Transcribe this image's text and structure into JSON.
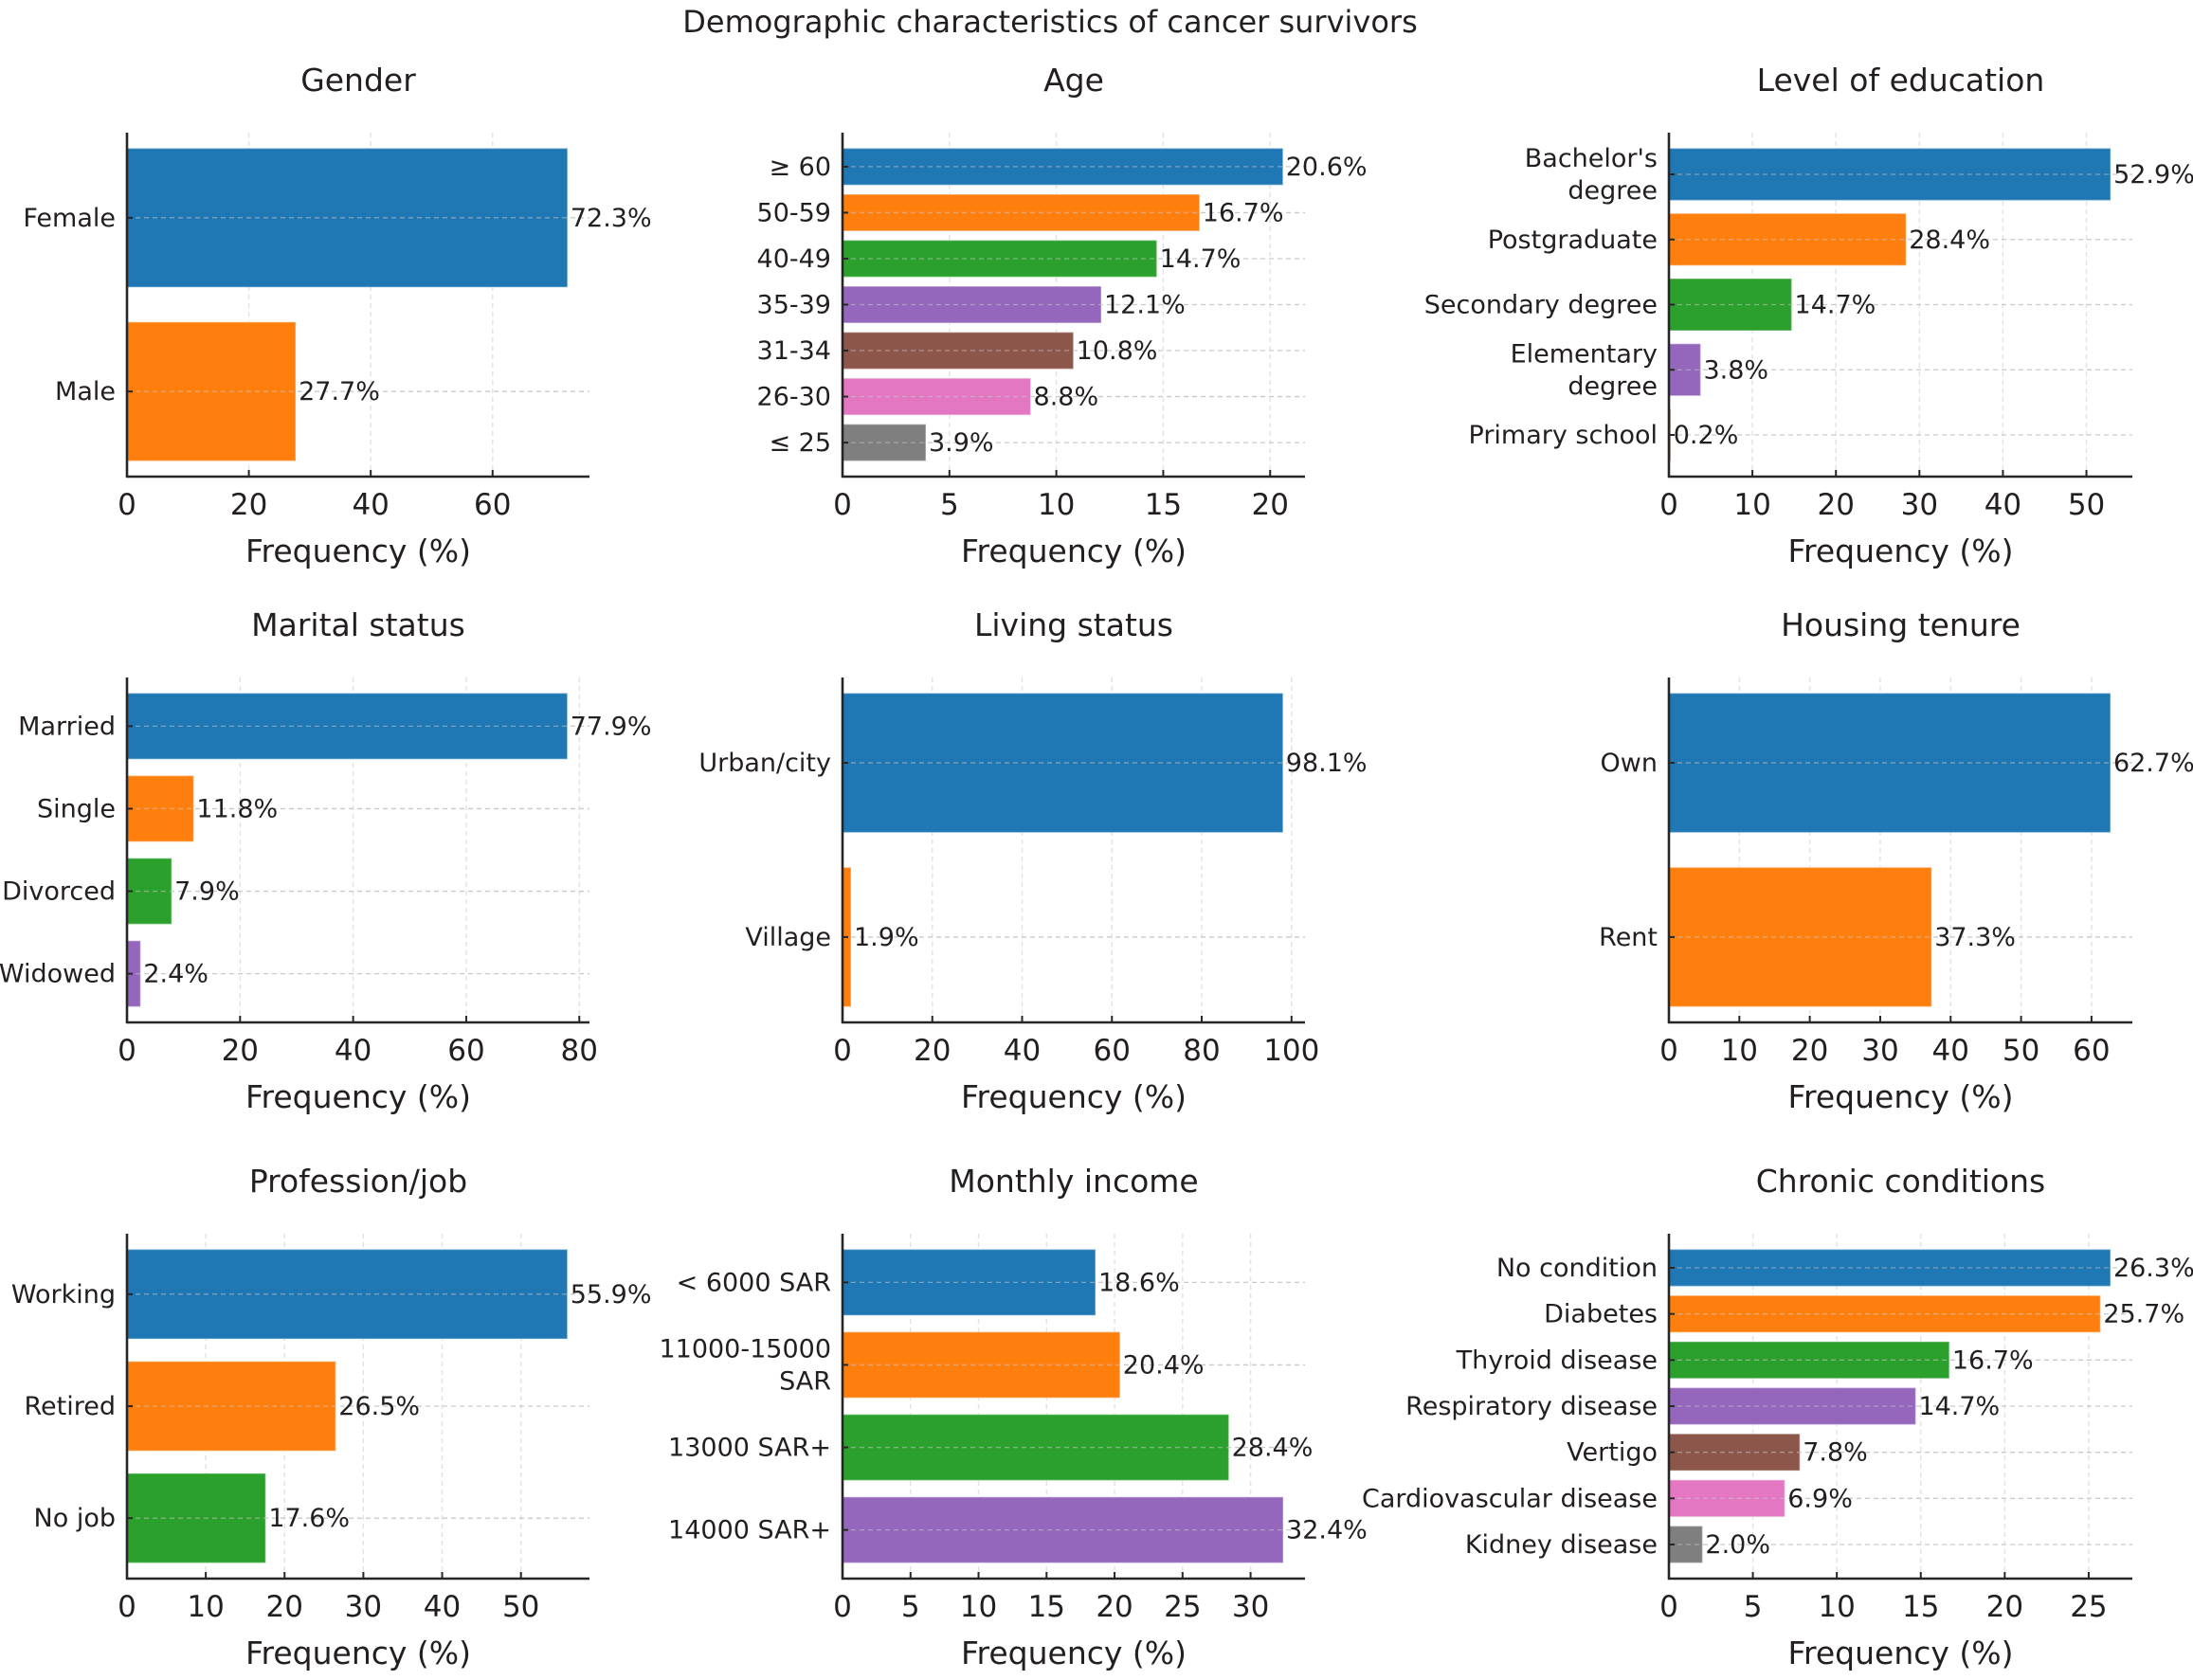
{
  "chart_data": {
    "type": "bar",
    "orientation": "horizontal",
    "title": "Demographic characteristics of cancer survivors",
    "grid": true,
    "value_label_format": "{v}%",
    "palette": [
      "#1f77b4",
      "#ff7f0e",
      "#2ca02c",
      "#9467bd",
      "#8c564b",
      "#e377c2",
      "#7f7f7f"
    ],
    "panels": [
      {
        "id": "gender",
        "title": "Gender",
        "xlabel": "Frequency (%)",
        "categories": [
          "Female",
          "Male"
        ],
        "values": [
          72.3,
          27.7
        ],
        "value_labels": [
          "72.3%",
          "27.7%"
        ],
        "xlim": [
          0,
          75.9
        ],
        "xticks": [
          0,
          20,
          40,
          60
        ],
        "xtick_labels": [
          "0",
          "20",
          "40",
          "60"
        ]
      },
      {
        "id": "age",
        "title": "Age",
        "xlabel": "Frequency (%)",
        "categories": [
          "≥ 60",
          "50-59",
          "40-49",
          "35-39",
          "31-34",
          "26-30",
          "≤ 25"
        ],
        "values": [
          20.6,
          16.7,
          14.7,
          12.1,
          10.8,
          8.8,
          3.9
        ],
        "value_labels": [
          "20.6%",
          "16.7%",
          "14.7%",
          "12.1%",
          "10.8%",
          "8.8%",
          "3.9%"
        ],
        "xlim": [
          0,
          21.63
        ],
        "xticks": [
          0,
          5,
          10,
          15,
          20
        ],
        "xtick_labels": [
          "0",
          "5",
          "10",
          "15",
          "20"
        ]
      },
      {
        "id": "education",
        "title": "Level of education",
        "xlabel": "Frequency (%)",
        "categories": [
          [
            "Bachelor's",
            "degree"
          ],
          [
            "Postgraduate"
          ],
          [
            "Secondary degree"
          ],
          [
            "Elementary",
            "degree"
          ],
          [
            "Primary school"
          ]
        ],
        "values": [
          52.9,
          28.4,
          14.7,
          3.8,
          0.2
        ],
        "value_labels": [
          "52.9%",
          "28.4%",
          "14.7%",
          "3.8%",
          "0.2%"
        ],
        "xlim": [
          0,
          55.5
        ],
        "xticks": [
          0,
          10,
          20,
          30,
          40,
          50
        ],
        "xtick_labels": [
          "0",
          "10",
          "20",
          "30",
          "40",
          "50"
        ],
        "colors": [
          "#1f77b4",
          "#ff7f0e",
          "#2ca02c",
          "#9467bd",
          "#8c564b"
        ]
      },
      {
        "id": "marital",
        "title": "Marital status",
        "xlabel": "Frequency (%)",
        "categories": [
          "Married",
          "Single",
          "Divorced",
          "Widowed"
        ],
        "values": [
          77.9,
          11.8,
          7.9,
          2.4
        ],
        "value_labels": [
          "77.9%",
          "11.8%",
          "7.9%",
          "2.4%"
        ],
        "xlim": [
          0,
          81.8
        ],
        "xticks": [
          0,
          20,
          40,
          60,
          80
        ],
        "xtick_labels": [
          "0",
          "20",
          "40",
          "60",
          "80"
        ]
      },
      {
        "id": "living",
        "title": "Living status",
        "xlabel": "Frequency (%)",
        "categories": [
          "Urban/city",
          "Village"
        ],
        "values": [
          98.1,
          1.9
        ],
        "value_labels": [
          "98.1%",
          "1.9%"
        ],
        "xlim": [
          0,
          103
        ],
        "xticks": [
          0,
          20,
          40,
          60,
          80,
          100
        ],
        "xtick_labels": [
          "0",
          "20",
          "40",
          "60",
          "80",
          "100"
        ]
      },
      {
        "id": "housing",
        "title": "Housing tenure",
        "xlabel": "Frequency (%)",
        "categories": [
          "Own",
          "Rent"
        ],
        "values": [
          62.7,
          37.3
        ],
        "value_labels": [
          "62.7%",
          "37.3%"
        ],
        "xlim": [
          0,
          65.8
        ],
        "xticks": [
          0,
          10,
          20,
          30,
          40,
          50,
          60
        ],
        "xtick_labels": [
          "0",
          "10",
          "20",
          "30",
          "40",
          "50",
          "60"
        ]
      },
      {
        "id": "profession",
        "title": "Profession/job",
        "xlabel": "Frequency (%)",
        "categories": [
          "Working",
          "Retired",
          "No job"
        ],
        "values": [
          55.9,
          26.5,
          17.6
        ],
        "value_labels": [
          "55.9%",
          "26.5%",
          "17.6%"
        ],
        "xlim": [
          0,
          58.7
        ],
        "xticks": [
          0,
          10,
          20,
          30,
          40,
          50
        ],
        "xtick_labels": [
          "0",
          "10",
          "20",
          "30",
          "40",
          "50"
        ]
      },
      {
        "id": "income",
        "title": "Monthly income",
        "xlabel": "Frequency (%)",
        "categories": [
          [
            "< 6000 SAR"
          ],
          [
            "11000-15000",
            "SAR"
          ],
          [
            "13000 SAR+"
          ],
          [
            "14000 SAR+"
          ]
        ],
        "values": [
          18.6,
          20.4,
          28.4,
          32.4
        ],
        "value_labels": [
          "18.6%",
          "20.4%",
          "28.4%",
          "32.4%"
        ],
        "xlim": [
          0,
          34.0
        ],
        "xticks": [
          0,
          5,
          10,
          15,
          20,
          25,
          30
        ],
        "xtick_labels": [
          "0",
          "5",
          "10",
          "15",
          "20",
          "25",
          "30"
        ]
      },
      {
        "id": "chronic",
        "title": "Chronic conditions",
        "xlabel": "Frequency (%)",
        "categories": [
          "No condition",
          "Diabetes",
          "Thyroid disease",
          "Respiratory disease",
          "Vertigo",
          "Cardiovascular disease",
          "Kidney disease"
        ],
        "values": [
          26.3,
          25.7,
          16.7,
          14.7,
          7.8,
          6.9,
          2.0
        ],
        "value_labels": [
          "26.3%",
          "25.7%",
          "16.7%",
          "14.7%",
          "7.8%",
          "6.9%",
          "2.0%"
        ],
        "xlim": [
          0,
          27.6
        ],
        "xticks": [
          0,
          5,
          10,
          15,
          20,
          25
        ],
        "xtick_labels": [
          "0",
          "5",
          "10",
          "15",
          "20",
          "25"
        ]
      }
    ]
  }
}
